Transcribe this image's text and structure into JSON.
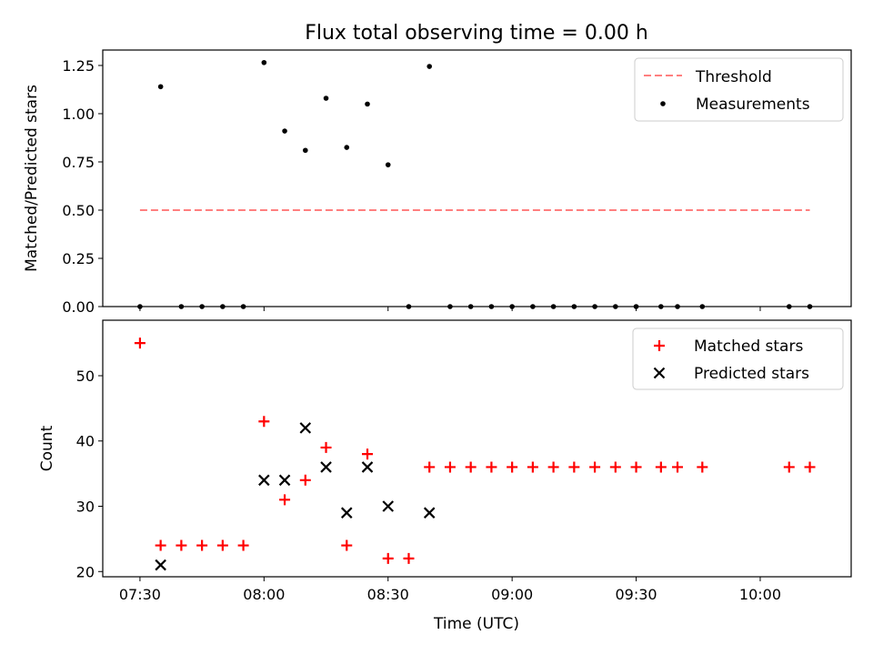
{
  "chart_data": [
    {
      "type": "scatter",
      "title": "Flux total observing time = 0.00 h",
      "xlabel": "",
      "ylabel": "Matched/Predicted stars",
      "xlim": [
        "07:21",
        "10:22"
      ],
      "ylim": [
        0,
        1.33
      ],
      "yticks": [
        "0.00",
        "0.25",
        "0.50",
        "0.75",
        "1.00",
        "1.25"
      ],
      "threshold": {
        "name": "Threshold",
        "value": 0.5,
        "x_start": "07:30",
        "x_end": "10:12",
        "color": "#ff7f7f"
      },
      "series": [
        {
          "name": "Measurements",
          "color": "#000000",
          "points": [
            [
              "07:30",
              0
            ],
            [
              "07:35",
              1.14
            ],
            [
              "07:40",
              0
            ],
            [
              "07:45",
              0
            ],
            [
              "07:50",
              0
            ],
            [
              "07:55",
              0
            ],
            [
              "08:00",
              1.265
            ],
            [
              "08:05",
              0.91
            ],
            [
              "08:10",
              0.81
            ],
            [
              "08:15",
              1.08
            ],
            [
              "08:20",
              0.825
            ],
            [
              "08:25",
              1.05
            ],
            [
              "08:30",
              0.735
            ],
            [
              "08:35",
              0
            ],
            [
              "08:40",
              1.245
            ],
            [
              "08:45",
              0
            ],
            [
              "08:50",
              0
            ],
            [
              "08:55",
              0
            ],
            [
              "09:00",
              0
            ],
            [
              "09:05",
              0
            ],
            [
              "09:10",
              0
            ],
            [
              "09:15",
              0
            ],
            [
              "09:20",
              0
            ],
            [
              "09:25",
              0
            ],
            [
              "09:30",
              0
            ],
            [
              "09:36",
              0
            ],
            [
              "09:40",
              0
            ],
            [
              "09:46",
              0
            ],
            [
              "10:07",
              0
            ],
            [
              "10:12",
              0
            ]
          ]
        }
      ],
      "legend": "top-right"
    },
    {
      "type": "scatter",
      "title": "",
      "xlabel": "Time (UTC)",
      "ylabel": "Count",
      "xlim": [
        "07:21",
        "10:22"
      ],
      "ylim": [
        19.2,
        58.5
      ],
      "yticks": [
        "20",
        "30",
        "40",
        "50"
      ],
      "xticks": [
        "07:30",
        "08:00",
        "08:30",
        "09:00",
        "09:30",
        "10:00"
      ],
      "series": [
        {
          "name": "Matched stars",
          "marker": "plus",
          "color": "#ff0000",
          "points": [
            [
              "07:30",
              55
            ],
            [
              "07:35",
              24
            ],
            [
              "07:40",
              24
            ],
            [
              "07:45",
              24
            ],
            [
              "07:50",
              24
            ],
            [
              "07:55",
              24
            ],
            [
              "08:00",
              43
            ],
            [
              "08:05",
              31
            ],
            [
              "08:10",
              34
            ],
            [
              "08:15",
              39
            ],
            [
              "08:20",
              24
            ],
            [
              "08:25",
              38
            ],
            [
              "08:30",
              22
            ],
            [
              "08:35",
              22
            ],
            [
              "08:40",
              36
            ],
            [
              "08:45",
              36
            ],
            [
              "08:50",
              36
            ],
            [
              "08:55",
              36
            ],
            [
              "09:00",
              36
            ],
            [
              "09:05",
              36
            ],
            [
              "09:10",
              36
            ],
            [
              "09:15",
              36
            ],
            [
              "09:20",
              36
            ],
            [
              "09:25",
              36
            ],
            [
              "09:30",
              36
            ],
            [
              "09:36",
              36
            ],
            [
              "09:40",
              36
            ],
            [
              "09:46",
              36
            ],
            [
              "10:07",
              36
            ],
            [
              "10:12",
              36
            ]
          ]
        },
        {
          "name": "Predicted stars",
          "marker": "x",
          "color": "#000000",
          "points": [
            [
              "07:35",
              21
            ],
            [
              "08:00",
              34
            ],
            [
              "08:05",
              34
            ],
            [
              "08:10",
              42
            ],
            [
              "08:15",
              36
            ],
            [
              "08:20",
              29
            ],
            [
              "08:25",
              36
            ],
            [
              "08:30",
              30
            ],
            [
              "08:40",
              29
            ]
          ]
        }
      ],
      "legend": "top-right"
    }
  ]
}
